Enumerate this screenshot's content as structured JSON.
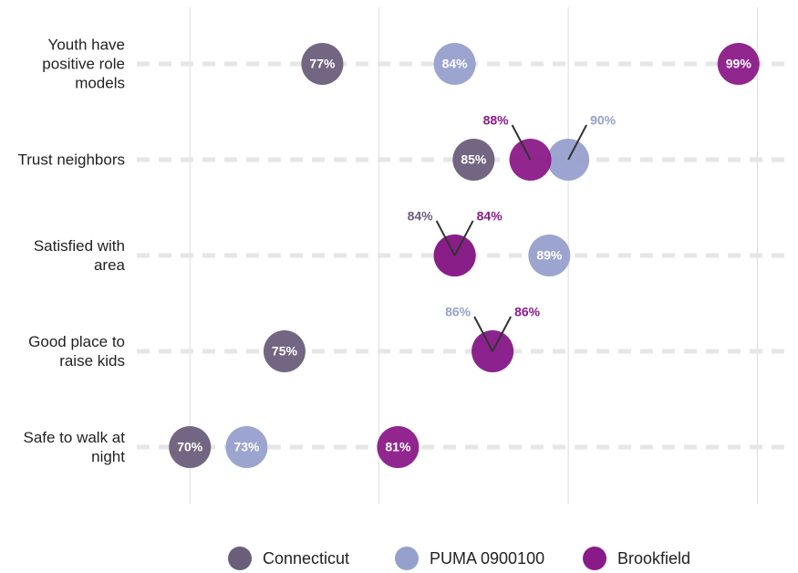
{
  "chart_data": {
    "type": "dot",
    "categories": [
      "Youth have positive role models",
      "Trust neighbors",
      "Satisfied with area",
      "Good place to raise kids",
      "Safe to walk at night"
    ],
    "series": [
      {
        "name": "Connecticut",
        "color": "#6b5e7b",
        "values": [
          77,
          85,
          84,
          75,
          70
        ],
        "value_labels": [
          "77%",
          "85%",
          "84%",
          "75%",
          "70%"
        ]
      },
      {
        "name": "PUMA 0900100",
        "color": "#96a0cc",
        "values": [
          84,
          90,
          89,
          86,
          73
        ],
        "value_labels": [
          "84%",
          "90%",
          "89%",
          "86%",
          "73%"
        ]
      },
      {
        "name": "Brookfield",
        "color": "#8b1a89",
        "values": [
          99,
          88,
          84,
          86,
          81
        ],
        "value_labels": [
          "99%",
          "88%",
          "84%",
          "86%",
          "81%"
        ]
      }
    ],
    "xlim": [
      67,
      102
    ],
    "xticks": [
      70,
      80,
      90,
      100
    ],
    "grid": true,
    "legend": "bottom"
  }
}
